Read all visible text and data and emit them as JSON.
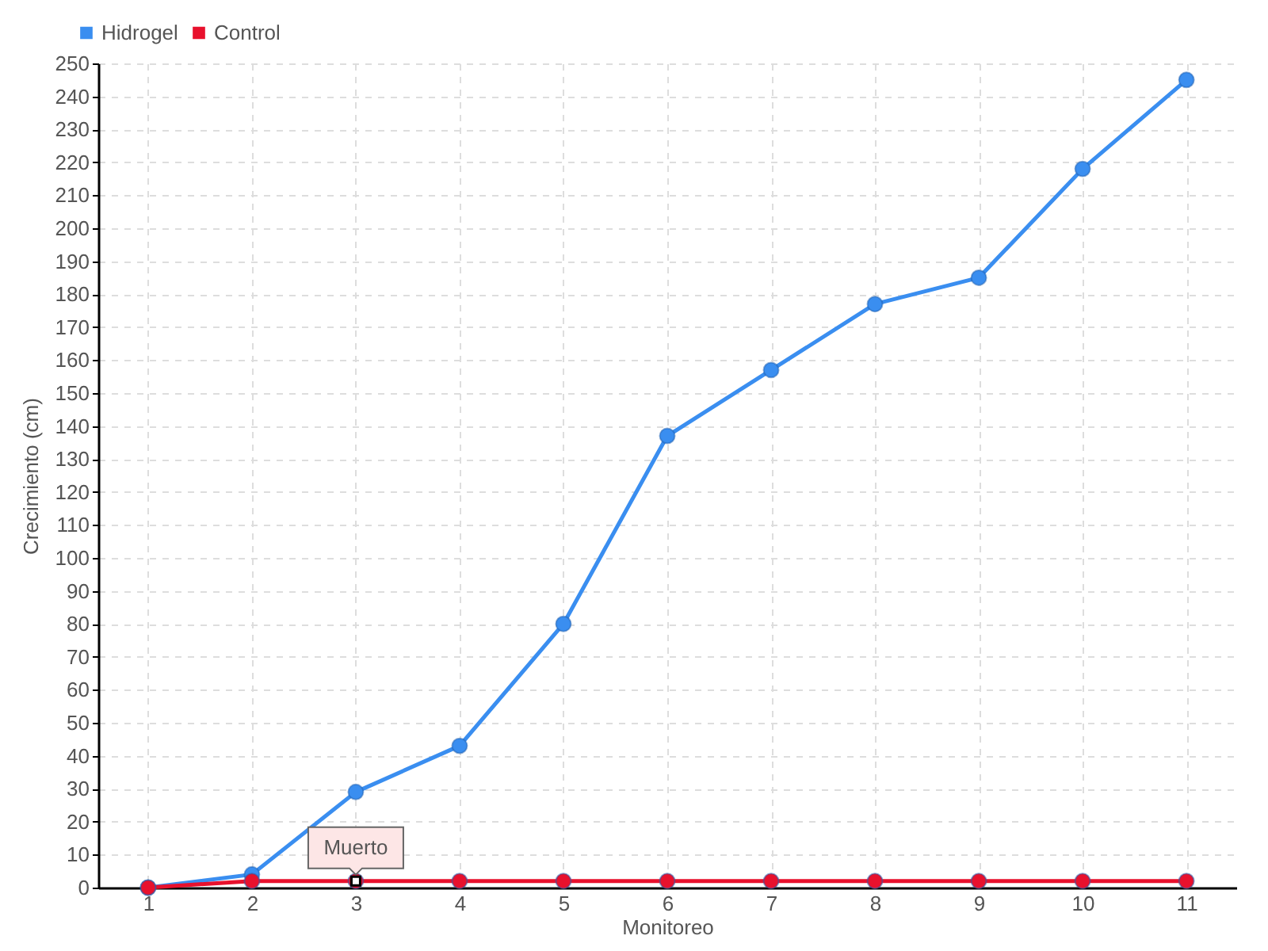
{
  "chart_data": {
    "type": "line",
    "xlabel": "Monitoreo",
    "ylabel": "Crecimiento (cm)",
    "categories": [
      "1",
      "2",
      "3",
      "4",
      "5",
      "6",
      "7",
      "8",
      "9",
      "10",
      "11"
    ],
    "series": [
      {
        "name": "Hidrogel",
        "color": "#3a8ef0",
        "values": [
          0,
          4,
          29,
          43,
          80,
          137,
          157,
          177,
          185,
          218,
          245
        ]
      },
      {
        "name": "Control",
        "color": "#e8112d",
        "values": [
          0,
          2,
          2,
          2,
          2,
          2,
          2,
          2,
          2,
          2,
          2
        ]
      }
    ],
    "ylim": [
      0,
      250
    ],
    "yticks": [
      0,
      10,
      20,
      30,
      40,
      50,
      60,
      70,
      80,
      90,
      100,
      110,
      120,
      130,
      140,
      150,
      160,
      170,
      180,
      190,
      200,
      210,
      220,
      230,
      240,
      250
    ],
    "grid": true,
    "legend": "top left",
    "marker": "circle",
    "line_style": "solid",
    "annotations": [
      {
        "text": "Muerto",
        "x": "3",
        "y": 2
      }
    ]
  }
}
